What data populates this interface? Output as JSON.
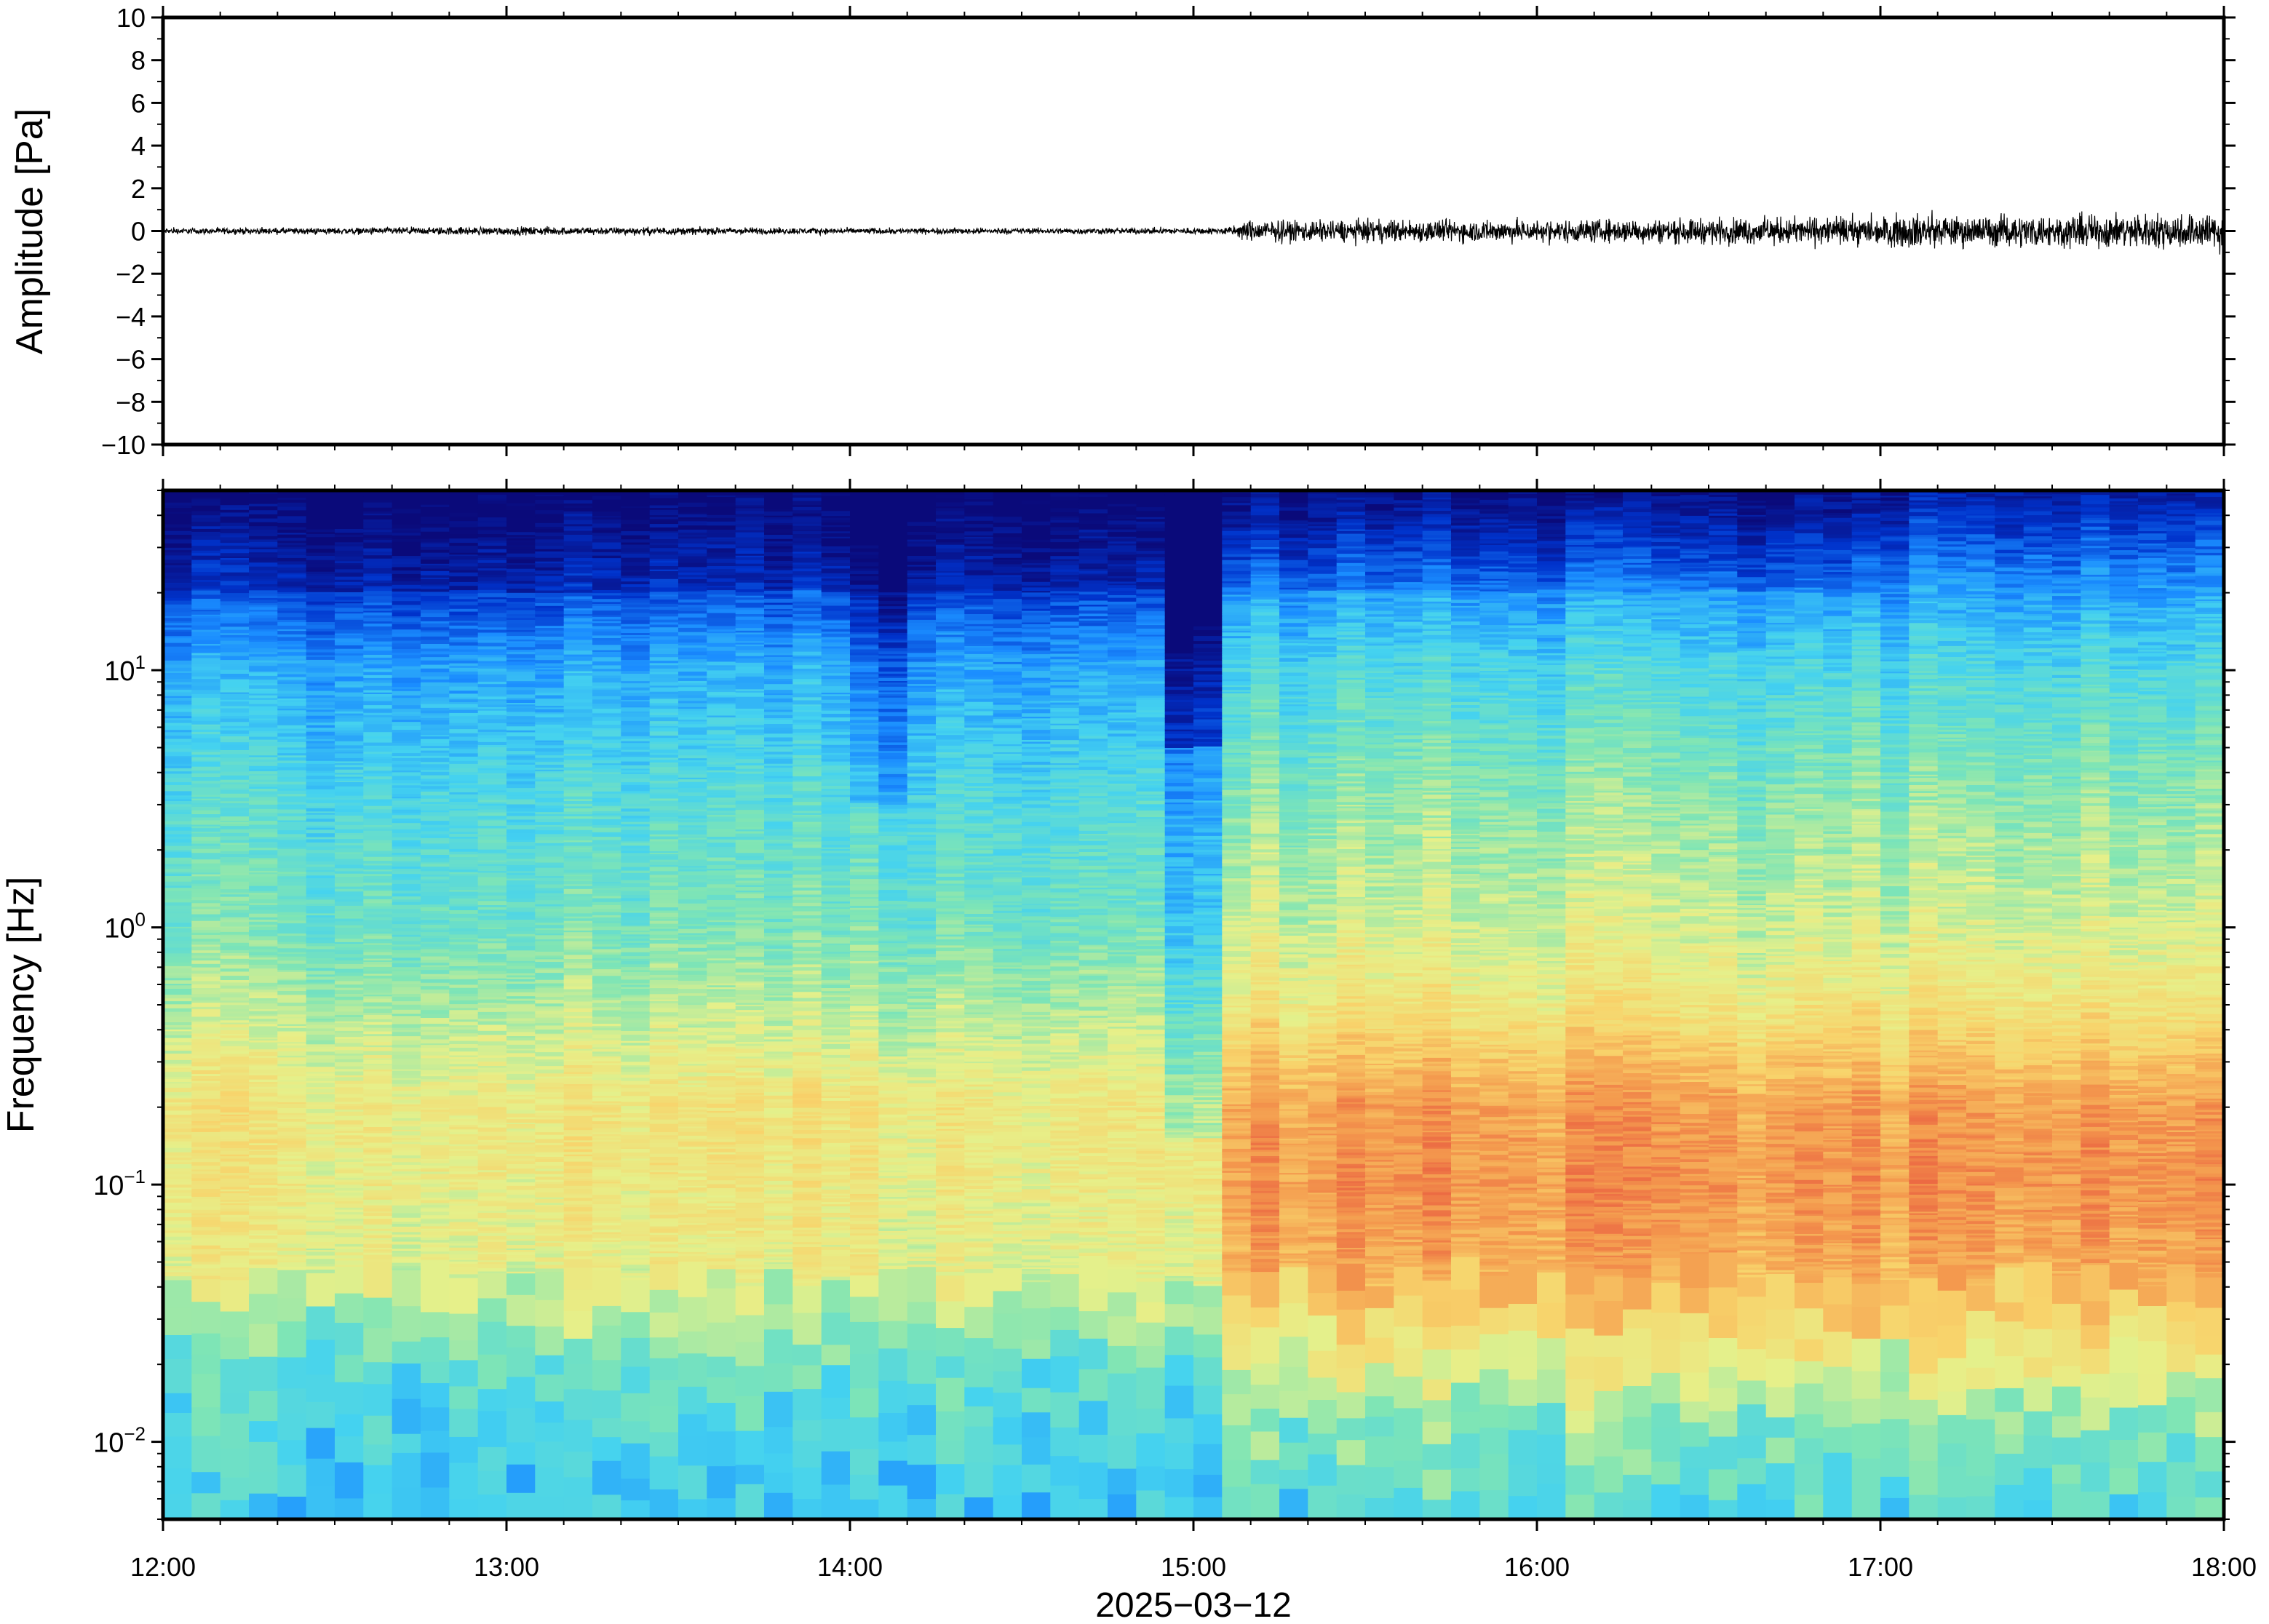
{
  "chart_data": [
    {
      "type": "line",
      "panel": "waveform",
      "ylabel": "Amplitude [Pa]",
      "ylim": [
        -10,
        10
      ],
      "yticks": [
        10,
        8,
        6,
        4,
        2,
        0,
        -2,
        -4,
        -6,
        -8,
        -10
      ],
      "ytick_labels": [
        "10",
        "8",
        "6",
        "4",
        "2",
        "0",
        "−2",
        "−4",
        "−6",
        "−8",
        "−10"
      ],
      "xlim_hours": [
        12,
        18
      ],
      "line_color": "#000000",
      "envelope": {
        "time_hours": [
          12.0,
          12.5,
          13.0,
          13.5,
          14.0,
          14.5,
          15.0,
          15.1,
          15.15,
          15.5,
          16.0,
          16.3,
          16.5,
          16.7,
          17.0,
          17.1,
          17.2,
          17.5,
          18.0
        ],
        "amplitude_pa": [
          0.2,
          0.22,
          0.28,
          0.25,
          0.2,
          0.2,
          0.22,
          0.25,
          0.7,
          0.75,
          0.75,
          0.8,
          0.85,
          0.9,
          0.95,
          1.2,
          1.0,
          1.1,
          1.2
        ]
      }
    },
    {
      "type": "heatmap",
      "panel": "spectrogram",
      "ylabel": "Frequency [Hz]",
      "yscale": "log",
      "ylim": [
        0.005,
        50
      ],
      "yticks": [
        0.01,
        0.1,
        1,
        10
      ],
      "ytick_labels": [
        {
          "base": "10",
          "exp": "−2"
        },
        {
          "base": "10",
          "exp": "−1"
        },
        {
          "base": "10",
          "exp": "0"
        },
        {
          "base": "10",
          "exp": "1"
        }
      ],
      "xlim_hours": [
        12,
        18
      ],
      "colormap": [
        "#0a0a7a",
        "#0033cc",
        "#1a8cff",
        "#44d2f0",
        "#7fe5b5",
        "#e6f08a",
        "#f8d36b",
        "#f49a4e",
        "#e8553e"
      ],
      "colormap_scale": "relative power (0 = low, 1 = high)",
      "power_profile": {
        "freq_hz": [
          0.005,
          0.01,
          0.02,
          0.03,
          0.05,
          0.1,
          0.2,
          0.5,
          1,
          3,
          10,
          20,
          50
        ],
        "before_1505": [
          0.35,
          0.4,
          0.48,
          0.58,
          0.64,
          0.66,
          0.68,
          0.56,
          0.48,
          0.42,
          0.3,
          0.15,
          0.02
        ],
        "after_1505": [
          0.42,
          0.5,
          0.66,
          0.76,
          0.84,
          0.88,
          0.86,
          0.68,
          0.6,
          0.52,
          0.4,
          0.28,
          0.05
        ]
      },
      "quiet_gap_hours": [
        14.88,
        15.12
      ],
      "dip_hours": [
        14.0,
        14.15
      ]
    }
  ],
  "x_axis": {
    "tick_hours": [
      12,
      13,
      14,
      15,
      16,
      17,
      18
    ],
    "tick_labels": [
      "12:00",
      "13:00",
      "14:00",
      "15:00",
      "16:00",
      "17:00",
      "18:00"
    ],
    "date_label": "2025−03−12"
  }
}
